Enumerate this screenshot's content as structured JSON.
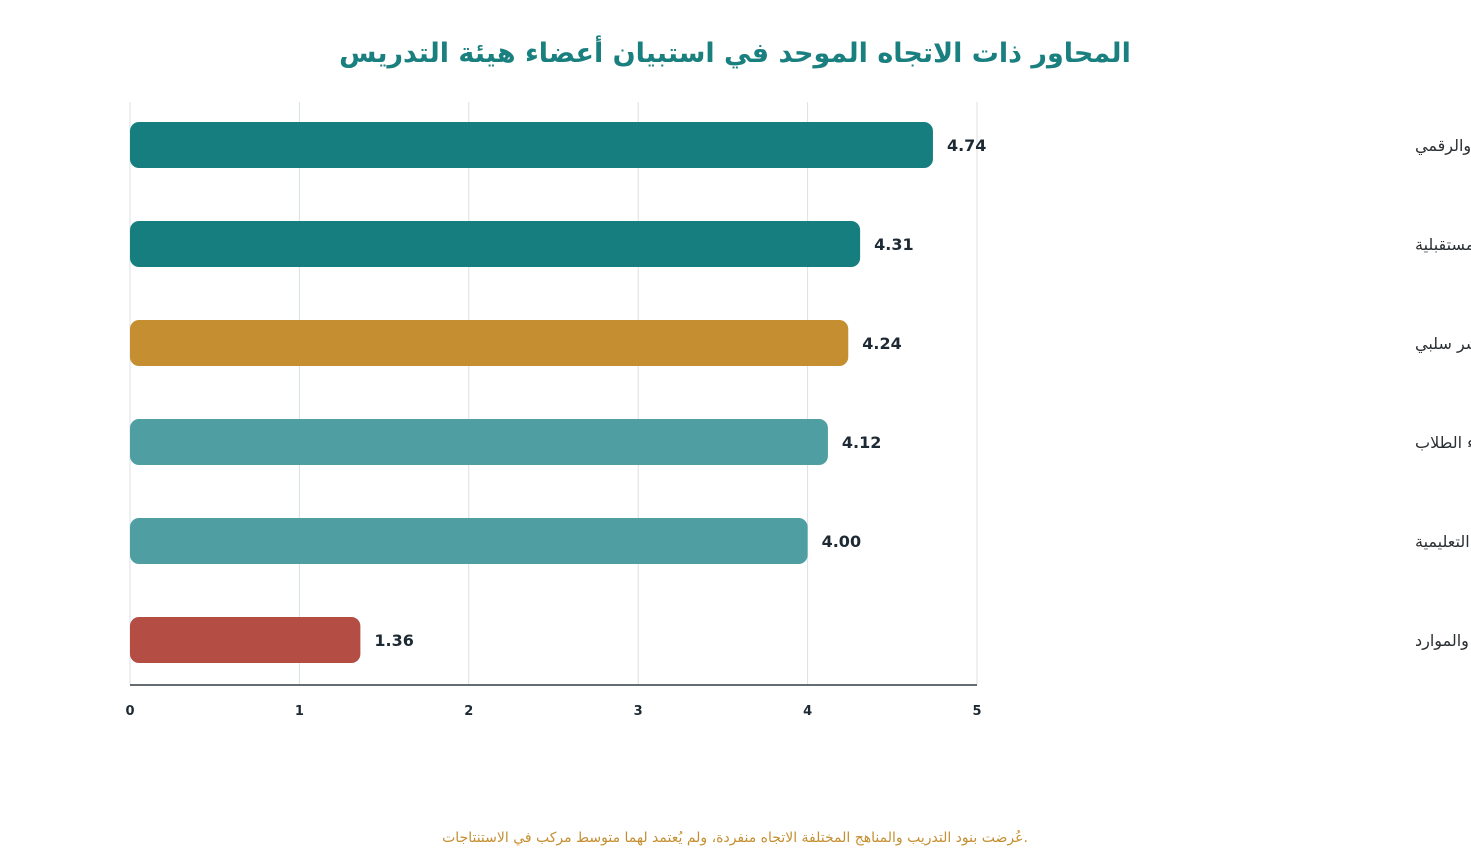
{
  "chart_data": {
    "type": "bar",
    "orientation": "horizontal",
    "title": "المحاور ذات الاتجاه الموحد في استبيان أعضاء هيئة التدريس",
    "categories": [
      "تكامل الرسم اليدوي والرقمي",
      "الرؤية المستقبلية",
      "التحديات والمعوقات، مؤشر سلبي",
      "أثر البرامج في أداء الطلاب",
      "أثر البرامج في العملية التعليمية",
      "البنية التحتية والموارد"
    ],
    "values": [
      4.74,
      4.31,
      4.24,
      4.12,
      4.0,
      1.36
    ],
    "value_labels": [
      "4.74",
      "4.31",
      "4.24",
      "4.12",
      "4.00",
      "1.36"
    ],
    "bar_colors": [
      "#177e80",
      "#177e80",
      "#c58f31",
      "#4f9fa2",
      "#4f9fa2",
      "#b44e45"
    ],
    "xlim": [
      0,
      5
    ],
    "x_ticks": [
      0,
      1,
      2,
      3,
      4,
      5
    ],
    "grid": "vertical",
    "legend": "none",
    "footnote": "عُرضت بنود التدريب والمناهج المختلفة الاتجاه منفردة، ولم يُعتمد لهما متوسط مركب في الاستنتاجات."
  },
  "colors": {
    "title": "#1a7f7f",
    "grid": "#d9e2e4",
    "axis": "#333d44",
    "footnote": "#c58f31"
  }
}
